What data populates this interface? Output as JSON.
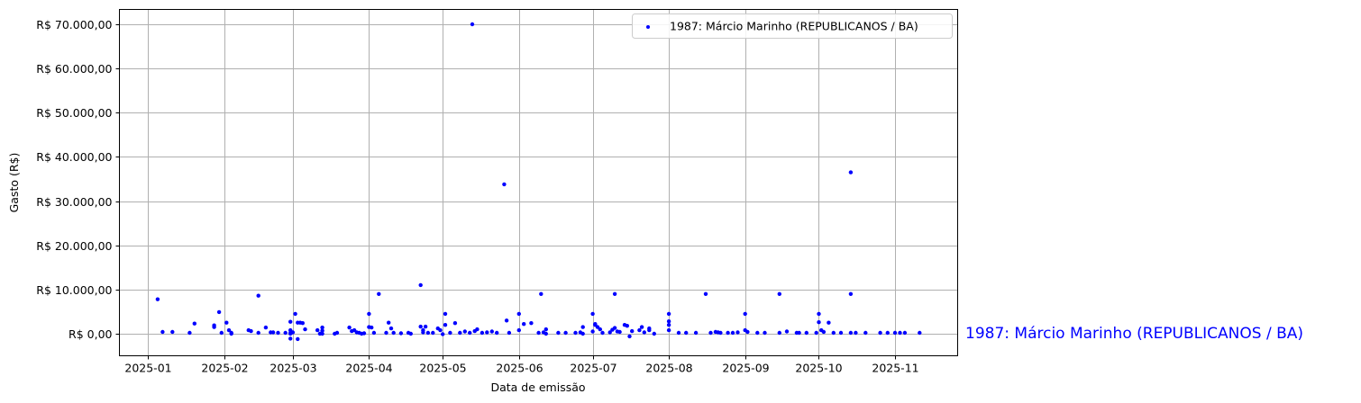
{
  "chart_data": {
    "type": "scatter",
    "title": "",
    "xlabel": "Data de emissão",
    "ylabel": "Gasto (R$)",
    "x_tick_labels": [
      "2025-01",
      "2025-02",
      "2025-03",
      "2025-04",
      "2025-05",
      "2025-06",
      "2025-07",
      "2025-08",
      "2025-09",
      "2025-10",
      "2025-11"
    ],
    "y_tick_labels": [
      "R$ 0,00",
      "R$ 10.000,00",
      "R$ 20.000,00",
      "R$ 30.000,00",
      "R$ 40.000,00",
      "R$ 50.000,00",
      "R$ 60.000,00",
      "R$ 70.000,00"
    ],
    "y_ticks": [
      0,
      10000,
      20000,
      30000,
      40000,
      50000,
      60000,
      70000
    ],
    "xlim": [
      "2024-12-20",
      "2025-11-28"
    ],
    "ylim": [
      -4800,
      73500
    ],
    "grid": true,
    "legend_position": "upper right",
    "annotation": "1987: Márcio Marinho (REPUBLICANOS / BA)",
    "series": [
      {
        "name": "1987: Márcio Marinho (REPUBLICANOS / BA)",
        "color": "#0000ff",
        "points": [
          [
            "2025-01-05",
            7800
          ],
          [
            "2025-01-07",
            400
          ],
          [
            "2025-01-11",
            400
          ],
          [
            "2025-01-18",
            200
          ],
          [
            "2025-01-20",
            2300
          ],
          [
            "2025-01-28",
            1500
          ],
          [
            "2025-01-28",
            1900
          ],
          [
            "2025-01-30",
            4900
          ],
          [
            "2025-01-31",
            200
          ],
          [
            "2025-02-02",
            2500
          ],
          [
            "2025-02-03",
            800
          ],
          [
            "2025-02-04",
            200
          ],
          [
            "2025-02-04",
            0
          ],
          [
            "2025-02-11",
            800
          ],
          [
            "2025-02-12",
            600
          ],
          [
            "2025-02-15",
            8600
          ],
          [
            "2025-02-15",
            200
          ],
          [
            "2025-02-18",
            1400
          ],
          [
            "2025-02-20",
            300
          ],
          [
            "2025-02-21",
            300
          ],
          [
            "2025-02-23",
            200
          ],
          [
            "2025-02-26",
            200
          ],
          [
            "2025-02-28",
            800
          ],
          [
            "2025-02-28",
            2700
          ],
          [
            "2025-02-28",
            200
          ],
          [
            "2025-02-28",
            -1100
          ],
          [
            "2025-02-28",
            0
          ],
          [
            "2025-03-01",
            300
          ],
          [
            "2025-03-02",
            4500
          ],
          [
            "2025-03-03",
            2500
          ],
          [
            "2025-03-03",
            -1200
          ],
          [
            "2025-03-04",
            2500
          ],
          [
            "2025-03-05",
            2400
          ],
          [
            "2025-03-06",
            1000
          ],
          [
            "2025-03-11",
            800
          ],
          [
            "2025-03-12",
            0
          ],
          [
            "2025-03-13",
            700
          ],
          [
            "2025-03-13",
            1400
          ],
          [
            "2025-03-13",
            0
          ],
          [
            "2025-03-18",
            0
          ],
          [
            "2025-03-19",
            200
          ],
          [
            "2025-03-24",
            1400
          ],
          [
            "2025-03-25",
            600
          ],
          [
            "2025-03-26",
            800
          ],
          [
            "2025-03-27",
            300
          ],
          [
            "2025-03-28",
            200
          ],
          [
            "2025-03-29",
            0
          ],
          [
            "2025-03-30",
            100
          ],
          [
            "2025-04-01",
            4500
          ],
          [
            "2025-04-01",
            1500
          ],
          [
            "2025-04-02",
            1400
          ],
          [
            "2025-04-03",
            200
          ],
          [
            "2025-04-05",
            9000
          ],
          [
            "2025-04-08",
            200
          ],
          [
            "2025-04-09",
            2500
          ],
          [
            "2025-04-10",
            1200
          ],
          [
            "2025-04-11",
            200
          ],
          [
            "2025-04-14",
            100
          ],
          [
            "2025-04-17",
            200
          ],
          [
            "2025-04-18",
            0
          ],
          [
            "2025-04-22",
            11000
          ],
          [
            "2025-04-22",
            1600
          ],
          [
            "2025-04-23",
            800
          ],
          [
            "2025-04-23",
            300
          ],
          [
            "2025-04-24",
            1600
          ],
          [
            "2025-04-25",
            200
          ],
          [
            "2025-04-27",
            200
          ],
          [
            "2025-04-29",
            1200
          ],
          [
            "2025-04-30",
            800
          ],
          [
            "2025-05-01",
            -100
          ],
          [
            "2025-05-02",
            4500
          ],
          [
            "2025-05-02",
            2000
          ],
          [
            "2025-05-04",
            200
          ],
          [
            "2025-05-06",
            2400
          ],
          [
            "2025-05-08",
            200
          ],
          [
            "2025-05-10",
            500
          ],
          [
            "2025-05-12",
            200
          ],
          [
            "2025-05-14",
            600
          ],
          [
            "2025-05-15",
            1000
          ],
          [
            "2025-05-17",
            200
          ],
          [
            "2025-05-19",
            300
          ],
          [
            "2025-05-21",
            500
          ],
          [
            "2025-05-23",
            200
          ],
          [
            "2025-05-13",
            70000
          ],
          [
            "2025-05-26",
            33800
          ],
          [
            "2025-05-27",
            3000
          ],
          [
            "2025-05-28",
            200
          ],
          [
            "2025-06-01",
            4500
          ],
          [
            "2025-06-01",
            800
          ],
          [
            "2025-06-03",
            2200
          ],
          [
            "2025-06-06",
            2400
          ],
          [
            "2025-06-09",
            200
          ],
          [
            "2025-06-10",
            9000
          ],
          [
            "2025-06-11",
            300
          ],
          [
            "2025-06-12",
            1000
          ],
          [
            "2025-06-12",
            0
          ],
          [
            "2025-06-17",
            200
          ],
          [
            "2025-06-20",
            200
          ],
          [
            "2025-06-24",
            200
          ],
          [
            "2025-06-26",
            300
          ],
          [
            "2025-06-27",
            1500
          ],
          [
            "2025-06-27",
            0
          ],
          [
            "2025-07-01",
            4500
          ],
          [
            "2025-07-01",
            500
          ],
          [
            "2025-07-02",
            2000
          ],
          [
            "2025-07-02",
            2200
          ],
          [
            "2025-07-03",
            1500
          ],
          [
            "2025-07-04",
            1000
          ],
          [
            "2025-07-05",
            200
          ],
          [
            "2025-07-08",
            300
          ],
          [
            "2025-07-09",
            900
          ],
          [
            "2025-07-10",
            1300
          ],
          [
            "2025-07-10",
            9000
          ],
          [
            "2025-07-11",
            500
          ],
          [
            "2025-07-12",
            400
          ],
          [
            "2025-07-14",
            2000
          ],
          [
            "2025-07-15",
            1800
          ],
          [
            "2025-07-16",
            -600
          ],
          [
            "2025-07-17",
            600
          ],
          [
            "2025-07-20",
            800
          ],
          [
            "2025-07-21",
            1500
          ],
          [
            "2025-07-22",
            300
          ],
          [
            "2025-07-24",
            1200
          ],
          [
            "2025-07-24",
            800
          ],
          [
            "2025-07-26",
            0
          ],
          [
            "2025-08-01",
            4500
          ],
          [
            "2025-08-01",
            2800
          ],
          [
            "2025-08-01",
            2000
          ],
          [
            "2025-08-01",
            800
          ],
          [
            "2025-08-05",
            200
          ],
          [
            "2025-08-08",
            200
          ],
          [
            "2025-08-12",
            200
          ],
          [
            "2025-08-16",
            9000
          ],
          [
            "2025-08-18",
            200
          ],
          [
            "2025-08-20",
            400
          ],
          [
            "2025-08-21",
            300
          ],
          [
            "2025-08-22",
            200
          ],
          [
            "2025-08-25",
            200
          ],
          [
            "2025-08-27",
            200
          ],
          [
            "2025-08-29",
            300
          ],
          [
            "2025-09-01",
            4500
          ],
          [
            "2025-09-01",
            800
          ],
          [
            "2025-09-02",
            400
          ],
          [
            "2025-09-06",
            200
          ],
          [
            "2025-09-09",
            200
          ],
          [
            "2025-09-15",
            9000
          ],
          [
            "2025-09-15",
            200
          ],
          [
            "2025-09-18",
            500
          ],
          [
            "2025-09-22",
            200
          ],
          [
            "2025-09-23",
            200
          ],
          [
            "2025-09-26",
            200
          ],
          [
            "2025-09-30",
            200
          ],
          [
            "2025-10-01",
            4500
          ],
          [
            "2025-10-01",
            2600
          ],
          [
            "2025-10-02",
            800
          ],
          [
            "2025-10-03",
            400
          ],
          [
            "2025-10-05",
            2500
          ],
          [
            "2025-10-07",
            200
          ],
          [
            "2025-10-10",
            200
          ],
          [
            "2025-10-14",
            36500
          ],
          [
            "2025-10-14",
            9000
          ],
          [
            "2025-10-14",
            200
          ],
          [
            "2025-10-16",
            200
          ],
          [
            "2025-10-20",
            200
          ],
          [
            "2025-10-26",
            200
          ],
          [
            "2025-10-29",
            200
          ],
          [
            "2025-11-01",
            200
          ],
          [
            "2025-11-03",
            200
          ],
          [
            "2025-11-05",
            200
          ],
          [
            "2025-11-11",
            200
          ]
        ]
      }
    ]
  }
}
